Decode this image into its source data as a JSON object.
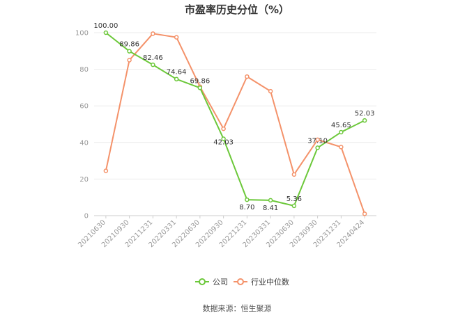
{
  "chart_data": {
    "type": "line",
    "title": "市盈率历史分位（%）",
    "categories": [
      "20210630",
      "20210930",
      "20211231",
      "20220331",
      "20220630",
      "20220930",
      "20221231",
      "20230331",
      "20230630",
      "20230930",
      "20231231",
      "20240424"
    ],
    "ylim": [
      0,
      100
    ],
    "yticks": [
      "0",
      "20",
      "40",
      "60",
      "80",
      "100"
    ],
    "grid": true,
    "legend_position": "bottom",
    "series": [
      {
        "name": "公司",
        "color": "#6cc83a",
        "values": [
          100.0,
          89.86,
          82.46,
          74.64,
          69.86,
          42.03,
          8.7,
          8.41,
          5.36,
          37.1,
          45.65,
          52.03
        ],
        "labels": [
          "100.00",
          "89.86",
          "82.46",
          "74.64",
          "69.86",
          "42.03",
          "8.70",
          "8.41",
          "5.36",
          "37.10",
          "45.65",
          "52.03"
        ]
      },
      {
        "name": "行业中位数",
        "color": "#f4926a",
        "values": [
          24.5,
          85.0,
          99.5,
          97.5,
          70.5,
          47.5,
          76.0,
          68.0,
          22.5,
          41.5,
          37.5,
          1.0
        ]
      }
    ],
    "source": "数据来源：恒生聚源"
  }
}
